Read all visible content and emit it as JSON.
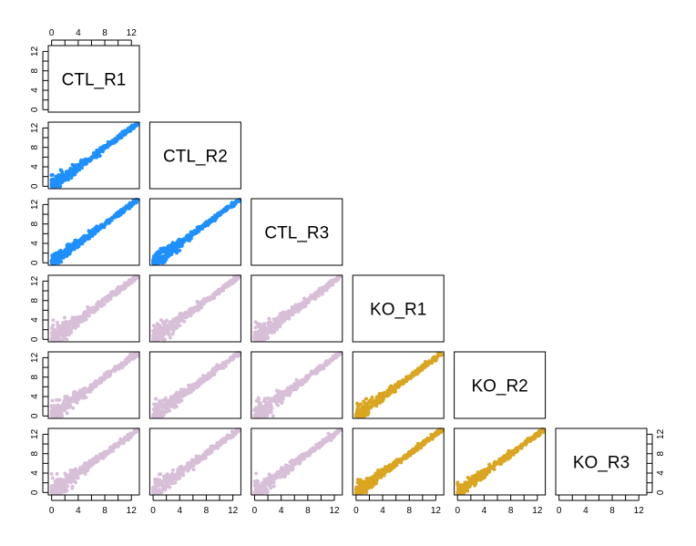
{
  "chart_data": {
    "type": "scatter",
    "layout": "pairs-matrix-lower-triangle",
    "variables": [
      "CTL_R1",
      "CTL_R2",
      "CTL_R3",
      "KO_R1",
      "KO_R2",
      "KO_R3"
    ],
    "axis_range": [
      -0.5,
      13.2
    ],
    "ticks": [
      0,
      2,
      4,
      6,
      8,
      10,
      12
    ],
    "tick_labels": [
      "0",
      "4",
      "8",
      "12"
    ],
    "tick_label_values": [
      0,
      4,
      8,
      12
    ],
    "colors": {
      "within_ctl": "#1E90FF",
      "ctl_vs_ko": "#D8BFD8",
      "within_ko": "#DAA520"
    },
    "panels_description": "Each lower panel plots log expression of row sample vs column sample; points lie along y = x from 0 to ~13, with larger spread at low values (0-4).",
    "point_model": {
      "count_per_panel": 380,
      "max": 13,
      "within_group_spread": 0.9,
      "between_group_spread": 1.4
    }
  }
}
